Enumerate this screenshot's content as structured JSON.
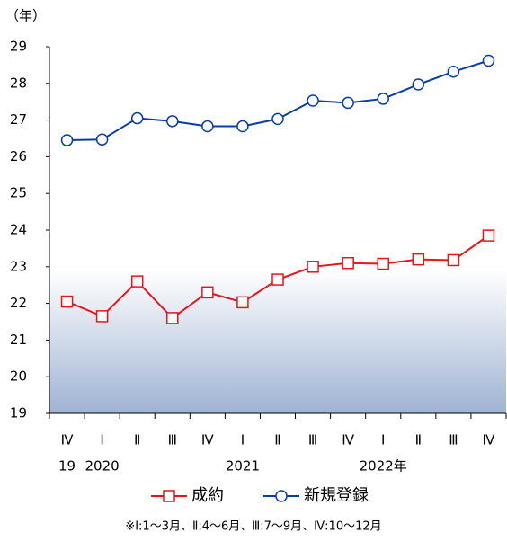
{
  "chart_data": {
    "type": "line",
    "y_unit": "（年）",
    "categories": [
      "Ⅳ",
      "Ⅰ",
      "Ⅱ",
      "Ⅲ",
      "Ⅳ",
      "Ⅰ",
      "Ⅱ",
      "Ⅲ",
      "Ⅳ",
      "Ⅰ",
      "Ⅱ",
      "Ⅲ",
      "Ⅳ"
    ],
    "year_labels": [
      "19",
      "2020",
      null,
      null,
      null,
      "2021",
      null,
      null,
      null,
      "2022年",
      null,
      null,
      null
    ],
    "series": [
      {
        "name": "成約",
        "color": "#e8141b",
        "marker": "square",
        "values": [
          22.05,
          21.65,
          22.6,
          21.6,
          22.3,
          22.03,
          22.65,
          23.0,
          23.1,
          23.08,
          23.2,
          23.18,
          23.85
        ]
      },
      {
        "name": "新規登録",
        "color": "#0a3ca8",
        "marker": "circle",
        "values": [
          26.45,
          26.47,
          27.05,
          26.97,
          26.83,
          26.83,
          27.03,
          27.53,
          27.47,
          27.58,
          27.97,
          28.32,
          28.62
        ]
      }
    ],
    "ylim": [
      19,
      29
    ],
    "yticks": [
      19,
      20,
      21,
      22,
      23,
      24,
      25,
      26,
      27,
      28,
      29
    ],
    "note": "※Ⅰ:1～3月、Ⅱ:4～6月、Ⅲ:7～9月、Ⅳ:10～12月"
  }
}
